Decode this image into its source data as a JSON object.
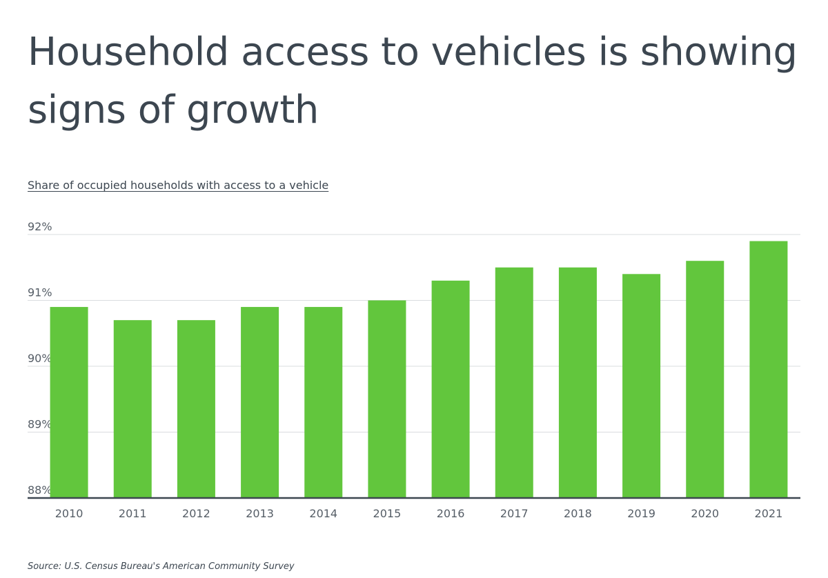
{
  "title": "Household access to vehicles is showing signs of growth",
  "subtitle": "Share of occupied households with access to a vehicle",
  "source": "Source: U.S. Census Bureau's American Community Survey",
  "colors": {
    "bar": "#62c63d",
    "grid": "#d9dcdf",
    "axis": "#3c4650"
  },
  "chart_data": {
    "type": "bar",
    "categories": [
      "2010",
      "2011",
      "2012",
      "2013",
      "2014",
      "2015",
      "2016",
      "2017",
      "2018",
      "2019",
      "2020",
      "2021"
    ],
    "values": [
      90.9,
      90.7,
      90.7,
      90.9,
      90.9,
      91.0,
      91.3,
      91.5,
      91.5,
      91.4,
      91.6,
      91.9
    ],
    "ylim": [
      88,
      92
    ],
    "yticks": [
      88,
      89,
      90,
      91,
      92
    ],
    "ytick_labels": [
      "88%",
      "89%",
      "90%",
      "91%",
      "92%"
    ],
    "xlabel": "",
    "ylabel": "",
    "grid": true
  }
}
